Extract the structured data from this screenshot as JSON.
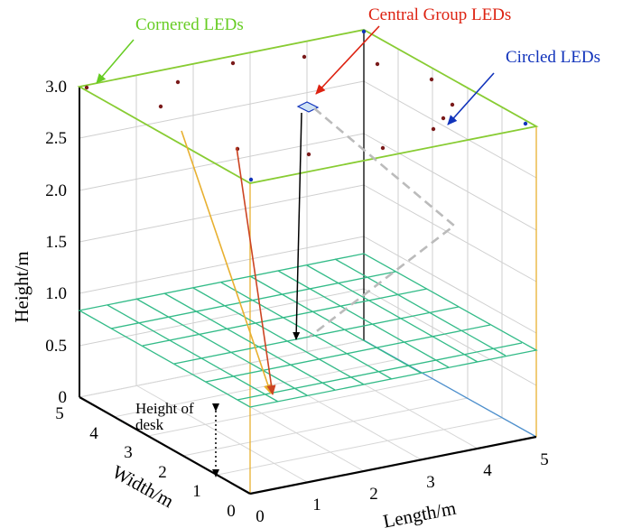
{
  "figure": {
    "axes": {
      "height_label": "Height/m",
      "width_label": "Width/m",
      "length_label": "Length/m",
      "height_ticks": [
        "0",
        "0.5",
        "1.0",
        "1.5",
        "2.0",
        "2.5",
        "3.0"
      ],
      "width_ticks": [
        "5",
        "4",
        "3",
        "2",
        "1",
        "0"
      ],
      "length_ticks": [
        "0",
        "1",
        "2",
        "3",
        "4",
        "5"
      ]
    },
    "annotations": {
      "cornered": "Cornered LEDs",
      "central": "Central Group LEDs",
      "circled": "Circled LEDs",
      "desk_line1": "Height of",
      "desk_line2": "desk"
    },
    "colors": {
      "cornered": "#66cc22",
      "central": "#dd2211",
      "circled": "#1133bb",
      "desk_grid": "#33bb88",
      "ceiling": "#88cc33",
      "orange_ray": "#e8b030",
      "red_ray": "#cc4422",
      "dashed_path": "#bbbbbb",
      "led": "#7a1a1a"
    }
  }
}
